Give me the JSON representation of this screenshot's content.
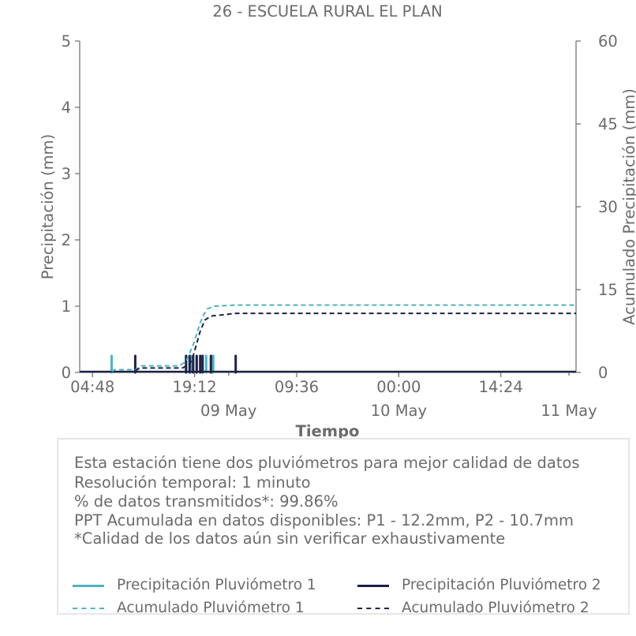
{
  "chart_data": {
    "type": "line",
    "title": "26 - ESCUELA RURAL EL PLAN",
    "xlabel": "Tiempo",
    "ylabel": "Precipitación (mm)",
    "y2label": "Acumulado Precipitación (mm)",
    "ylim": [
      0,
      5
    ],
    "y2lim": [
      0,
      60
    ],
    "yticks": [
      "0",
      "1",
      "2",
      "3",
      "4",
      "5"
    ],
    "y2ticks": [
      "0",
      "15",
      "30",
      "45",
      "60"
    ],
    "xlim": [
      "2024-05-08 03:00",
      "2024-05-11 01:00"
    ],
    "xticks": [
      {
        "x": "2024-05-08 04:48",
        "label": "04:48"
      },
      {
        "x": "2024-05-08 19:12",
        "label": "19:12"
      },
      {
        "x": "2024-05-09 09:36",
        "label": "09:36"
      },
      {
        "x": "2024-05-10 00:00",
        "label": "00:00"
      },
      {
        "x": "2024-05-10 14:24",
        "label": "14:24"
      }
    ],
    "date_labels": [
      {
        "x": "2024-05-09 00:00",
        "label": "09 May"
      },
      {
        "x": "2024-05-10 00:00",
        "label": "10 May"
      },
      {
        "x": "2024-05-11 00:00",
        "label": "11 May"
      }
    ],
    "series": [
      {
        "name": "Precipitación Pluviómetro 1",
        "axis": "left",
        "style": "solid",
        "color": "#4fb3c0",
        "points": [
          {
            "x": "2024-05-08 07:30",
            "y": 0.25
          },
          {
            "x": "2024-05-08 18:00",
            "y": 0.25
          },
          {
            "x": "2024-05-08 18:40",
            "y": 0.25
          },
          {
            "x": "2024-05-08 19:00",
            "y": 0.25
          },
          {
            "x": "2024-05-08 19:30",
            "y": 0.25
          },
          {
            "x": "2024-05-08 20:00",
            "y": 0.25
          },
          {
            "x": "2024-05-08 20:50",
            "y": 0.25
          },
          {
            "x": "2024-05-08 21:40",
            "y": 0.25
          },
          {
            "x": "2024-05-08 21:50",
            "y": 0.25
          }
        ]
      },
      {
        "name": "Precipitación Pluviómetro 2",
        "axis": "left",
        "style": "solid",
        "color": "#1e2248",
        "points": [
          {
            "x": "2024-05-08 10:50",
            "y": 0.25
          },
          {
            "x": "2024-05-08 18:00",
            "y": 0.25
          },
          {
            "x": "2024-05-08 18:30",
            "y": 0.25
          },
          {
            "x": "2024-05-08 19:00",
            "y": 0.25
          },
          {
            "x": "2024-05-08 19:30",
            "y": 0.25
          },
          {
            "x": "2024-05-08 20:00",
            "y": 0.25
          },
          {
            "x": "2024-05-08 20:20",
            "y": 0.25
          },
          {
            "x": "2024-05-08 21:30",
            "y": 0.25
          },
          {
            "x": "2024-05-09 01:00",
            "y": 0.25
          }
        ]
      },
      {
        "name": "Acumulado Pluviómetro 1",
        "axis": "right",
        "style": "dashed",
        "color": "#4fb3c0",
        "points": [
          {
            "x": "2024-05-08 07:30",
            "y": 0.2
          },
          {
            "x": "2024-05-08 08:00",
            "y": 0.5
          },
          {
            "x": "2024-05-08 11:00",
            "y": 0.5
          },
          {
            "x": "2024-05-08 11:30",
            "y": 1.2
          },
          {
            "x": "2024-05-08 17:00",
            "y": 1.2
          },
          {
            "x": "2024-05-08 18:00",
            "y": 2
          },
          {
            "x": "2024-05-08 19:00",
            "y": 5
          },
          {
            "x": "2024-05-08 20:00",
            "y": 9
          },
          {
            "x": "2024-05-08 20:30",
            "y": 10.5
          },
          {
            "x": "2024-05-08 21:00",
            "y": 11.5
          },
          {
            "x": "2024-05-08 22:00",
            "y": 12
          },
          {
            "x": "2024-05-09 01:00",
            "y": 12.2
          },
          {
            "x": "2024-05-11 01:00",
            "y": 12.2
          }
        ]
      },
      {
        "name": "Acumulado Pluviómetro 2",
        "axis": "right",
        "style": "dashed",
        "color": "#1e2248",
        "points": [
          {
            "x": "2024-05-08 10:50",
            "y": 0.3
          },
          {
            "x": "2024-05-08 11:30",
            "y": 0.8
          },
          {
            "x": "2024-05-08 17:30",
            "y": 0.8
          },
          {
            "x": "2024-05-08 18:30",
            "y": 1.5
          },
          {
            "x": "2024-05-08 19:00",
            "y": 3
          },
          {
            "x": "2024-05-08 20:00",
            "y": 7.5
          },
          {
            "x": "2024-05-08 20:40",
            "y": 9.5
          },
          {
            "x": "2024-05-08 21:30",
            "y": 10.2
          },
          {
            "x": "2024-05-09 01:00",
            "y": 10.7
          },
          {
            "x": "2024-05-11 01:00",
            "y": 10.7
          }
        ]
      }
    ],
    "grid": false,
    "legend_placement": "below"
  },
  "info": {
    "line1": "Esta estación tiene dos pluviómetros para mejor calidad de datos",
    "line2": "Resolución temporal: 1 minuto",
    "line3": "% de datos transmitidos*: 99.86%",
    "line4": "PPT Acumulada en datos disponibles: P1 - 12.2mm, P2 - 10.7mm",
    "line5": "*Calidad de los datos aún sin verificar exhaustivamente"
  },
  "legend": [
    {
      "label": "Precipitación Pluviómetro 1",
      "color": "#4fb3c0",
      "style": "solid"
    },
    {
      "label": "Precipitación Pluviómetro 2",
      "color": "#1e2248",
      "style": "solid"
    },
    {
      "label": "Acumulado Pluviómetro 1",
      "color": "#4fb3c0",
      "style": "dashed"
    },
    {
      "label": "Acumulado Pluviómetro 2",
      "color": "#1e2248",
      "style": "dashed"
    }
  ]
}
